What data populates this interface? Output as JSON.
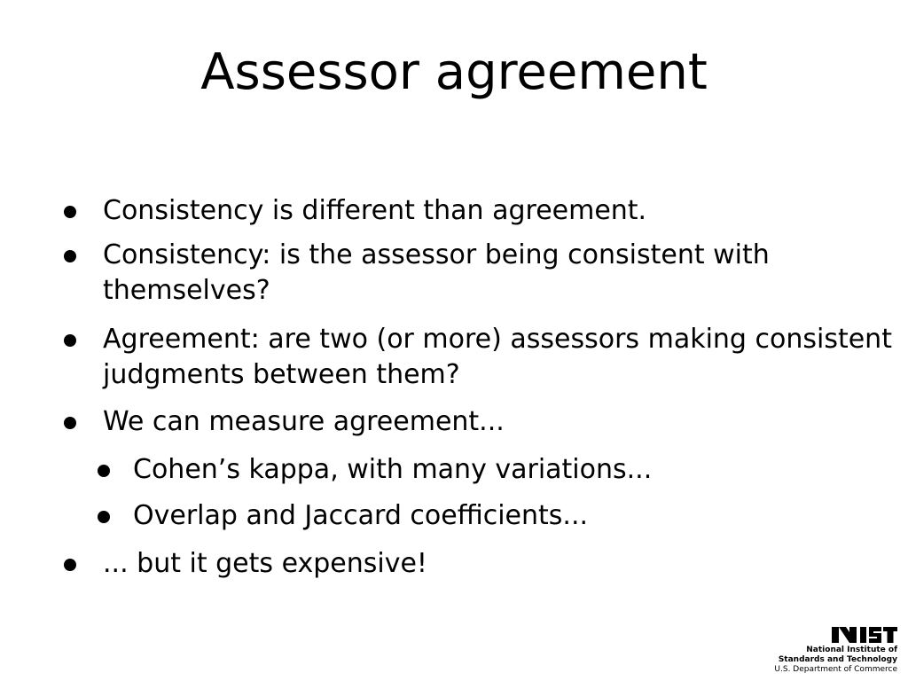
{
  "slide": {
    "title": "Assessor agreement",
    "bullets": [
      {
        "level": 1,
        "lines": [
          "Consistency is different than agreement."
        ]
      },
      {
        "level": 1,
        "lines": [
          "Consistency: is the assessor being consistent with",
          "themselves?"
        ]
      },
      {
        "level": 1,
        "lines": [
          "Agreement: are two (or more) assessors making consistent",
          "judgments between them?"
        ]
      },
      {
        "level": 1,
        "lines": [
          "We can measure agreement..."
        ]
      },
      {
        "level": 2,
        "lines": [
          "Cohen’s kappa, with many variations..."
        ]
      },
      {
        "level": 2,
        "lines": [
          "Overlap and Jaccard coefficients..."
        ]
      },
      {
        "level": 1,
        "lines": [
          "... but it gets expensive!"
        ]
      }
    ]
  },
  "logo": {
    "mark_text": "NIST",
    "line1": "National Institute of",
    "line2": "Standards and Technology",
    "line3": "U.S. Department of Commerce"
  }
}
